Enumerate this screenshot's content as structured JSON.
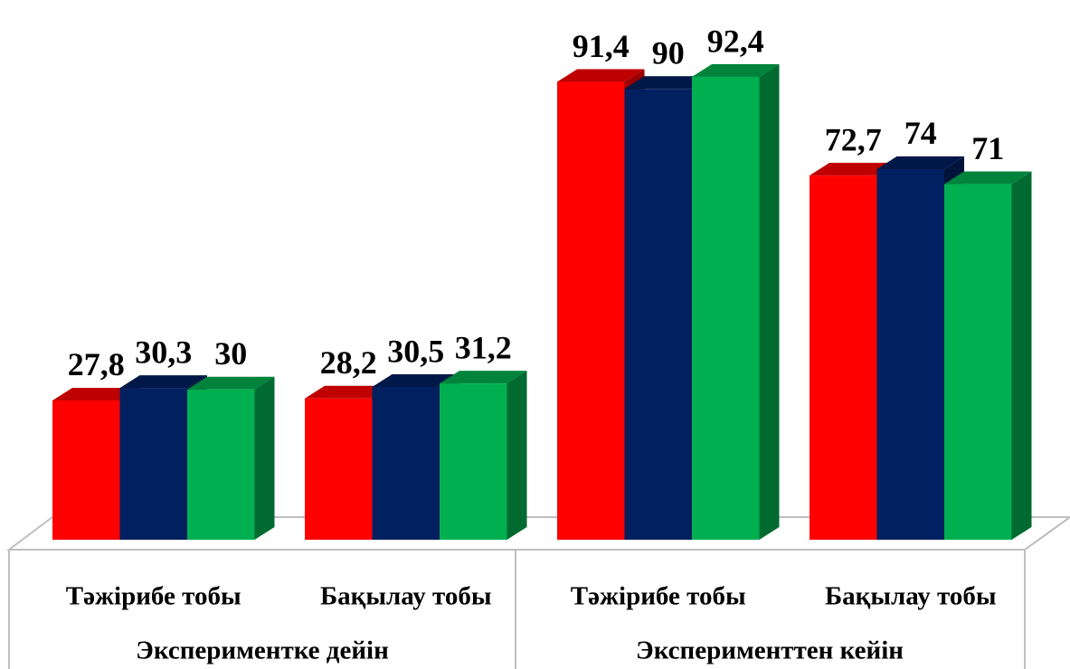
{
  "chart_data": {
    "type": "bar3d",
    "groups": [
      {
        "label": "Экспериментке дейін",
        "categories": [
          "Тәжірибе тобы",
          "Бақылау тобы"
        ]
      },
      {
        "label": "Эксперименттен кейін",
        "categories": [
          "Тәжірибе тобы",
          "Бақылау тобы"
        ]
      }
    ],
    "series": [
      {
        "color": "#ff0000",
        "values": [
          27.8,
          28.2,
          91.4,
          72.7
        ],
        "value_labels": [
          "27,8",
          "28,2",
          "91,4",
          "72,7"
        ]
      },
      {
        "color": "#002060",
        "values": [
          30.3,
          30.5,
          90,
          74
        ],
        "value_labels": [
          "30,3",
          "30,5",
          "90",
          "74"
        ]
      },
      {
        "color": "#00b050",
        "values": [
          30,
          31.2,
          92.4,
          71
        ],
        "value_labels": [
          "30",
          "31,2",
          "92,4",
          "71"
        ]
      }
    ]
  }
}
